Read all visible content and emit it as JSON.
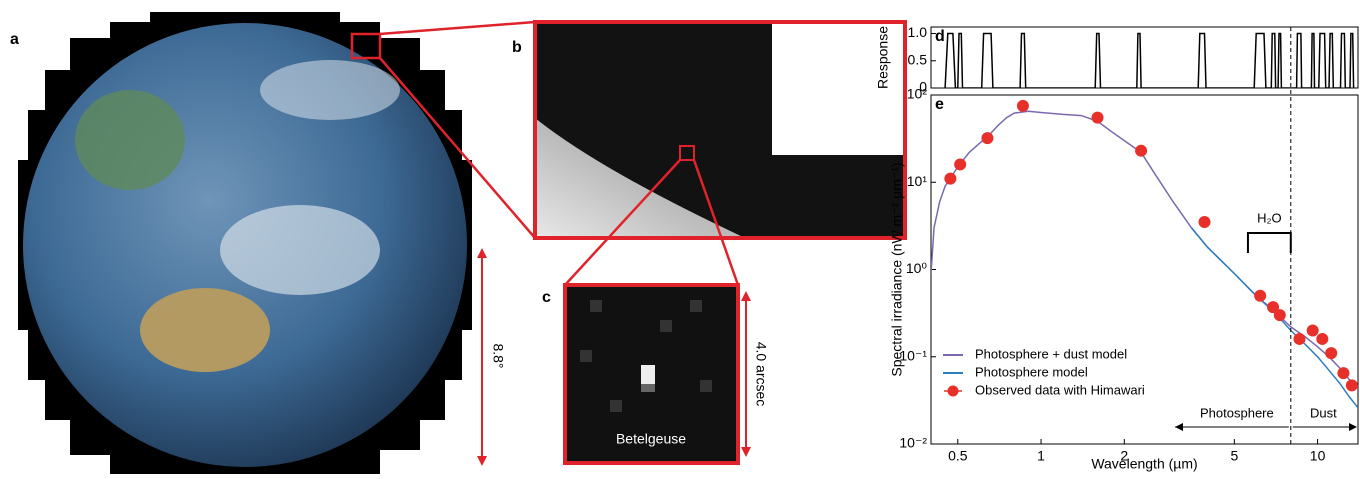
{
  "panels": {
    "a": "a",
    "b": "b",
    "c": "c",
    "earth_size": "8.8°",
    "star_size": "4.0 arcsec",
    "star_name": "Betelgeuse"
  },
  "chart_data": [
    {
      "type": "line",
      "panel": "d",
      "ylabel": "Response",
      "xlog": true,
      "xlim": [
        0.4,
        14
      ],
      "ylim": [
        0,
        1.12
      ],
      "yticks": [
        0,
        0.5,
        {
          "value": 1,
          "label": "1.0"
        }
      ],
      "series": [
        {
          "color": "#000000",
          "x": [
            0.45,
            0.46,
            0.48,
            0.49,
            0.5,
            0.505,
            0.515,
            0.52,
            0.61,
            0.62,
            0.66,
            0.67,
            0.84,
            0.85,
            0.87,
            0.88,
            1.57,
            1.59,
            1.62,
            1.64,
            2.22,
            2.24,
            2.28,
            2.3,
            3.7,
            3.75,
            3.9,
            3.95,
            5.9,
            6.0,
            6.4,
            6.5,
            6.8,
            6.85,
            7.0,
            7.05,
            7.2,
            7.25,
            7.35,
            7.4,
            8.4,
            8.45,
            8.7,
            8.75,
            9.5,
            9.55,
            9.7,
            9.75,
            10.1,
            10.2,
            10.6,
            10.7,
            11.0,
            11.1,
            11.3,
            11.4,
            12.1,
            12.2,
            12.5,
            12.6,
            13.1,
            13.2,
            13.4,
            13.5
          ],
          "values": [
            0,
            1,
            1,
            0,
            0,
            1,
            1,
            0,
            0,
            1,
            1,
            0,
            0,
            1,
            1,
            0,
            0,
            1,
            1,
            0,
            0,
            1,
            1,
            0,
            0,
            1,
            1,
            0,
            0,
            1,
            1,
            0,
            0,
            1,
            1,
            0,
            0,
            1,
            1,
            0,
            0,
            1,
            1,
            0,
            0,
            1,
            1,
            0,
            0,
            1,
            1,
            0,
            0,
            1,
            1,
            0,
            0,
            1,
            1,
            0,
            0,
            1,
            1,
            0
          ]
        }
      ]
    },
    {
      "type": "line",
      "panel": "e",
      "xlabel": "Wavelength (µm)",
      "ylabel": "Spectral irradiance (nW m⁻² µm⁻¹)",
      "xlog": true,
      "ylog": true,
      "xlim": [
        0.4,
        14
      ],
      "ylim": [
        0.01,
        100
      ],
      "xticks": [
        0.5,
        1,
        2,
        5,
        10
      ],
      "yticks": [
        {
          "value": 0.01,
          "label": "10⁻²"
        },
        {
          "value": 0.1,
          "label": "10⁻¹"
        },
        {
          "value": 1,
          "label": "10⁰"
        },
        {
          "value": 10,
          "label": "10¹"
        },
        {
          "value": 100,
          "label": "10²"
        }
      ],
      "legend": "lower left",
      "series": [
        {
          "name": "Photosphere + dust model",
          "color": "#7b68b0",
          "x": [
            0.4,
            0.41,
            0.43,
            0.45,
            0.5,
            0.55,
            0.6,
            0.65,
            0.7,
            0.75,
            0.8,
            0.9,
            1.0,
            1.2,
            1.4,
            1.6,
            1.8,
            2.0,
            2.3,
            2.6,
            3.0,
            3.5,
            4.0,
            5,
            6,
            7,
            8,
            9,
            10,
            11,
            12,
            13,
            14
          ],
          "values": [
            0.9,
            3,
            6,
            9,
            15,
            22,
            28,
            35,
            45,
            55,
            62,
            65,
            63,
            60,
            58,
            50,
            38,
            30,
            22,
            12,
            6,
            3,
            1.8,
            0.9,
            0.5,
            0.33,
            0.22,
            0.17,
            0.13,
            0.1,
            0.075,
            0.055,
            0.045
          ]
        },
        {
          "name": "Photosphere model",
          "color": "#2e7fc0",
          "x": [
            3.5,
            4.0,
            5,
            6,
            7,
            8,
            9,
            10,
            11,
            12,
            13,
            14
          ],
          "values": [
            3,
            1.8,
            0.9,
            0.5,
            0.32,
            0.2,
            0.14,
            0.1,
            0.07,
            0.05,
            0.035,
            0.026
          ]
        },
        {
          "name": "Observed data with Himawari",
          "color": "#e8302a",
          "marker": true,
          "x": [
            0.47,
            0.51,
            0.64,
            0.86,
            1.6,
            2.3,
            3.9,
            6.2,
            6.9,
            7.3,
            8.6,
            9.6,
            10.4,
            11.2,
            12.4,
            13.3
          ],
          "values": [
            11,
            16,
            32,
            75,
            55,
            23,
            3.5,
            0.5,
            0.37,
            0.3,
            0.16,
            0.2,
            0.16,
            0.11,
            0.065,
            0.047
          ]
        }
      ],
      "vline": 8,
      "h2o_range": [
        5.6,
        8.0
      ],
      "h2o_label": "H₂O",
      "left_label": "Photosphere",
      "right_label": "Dust"
    }
  ]
}
